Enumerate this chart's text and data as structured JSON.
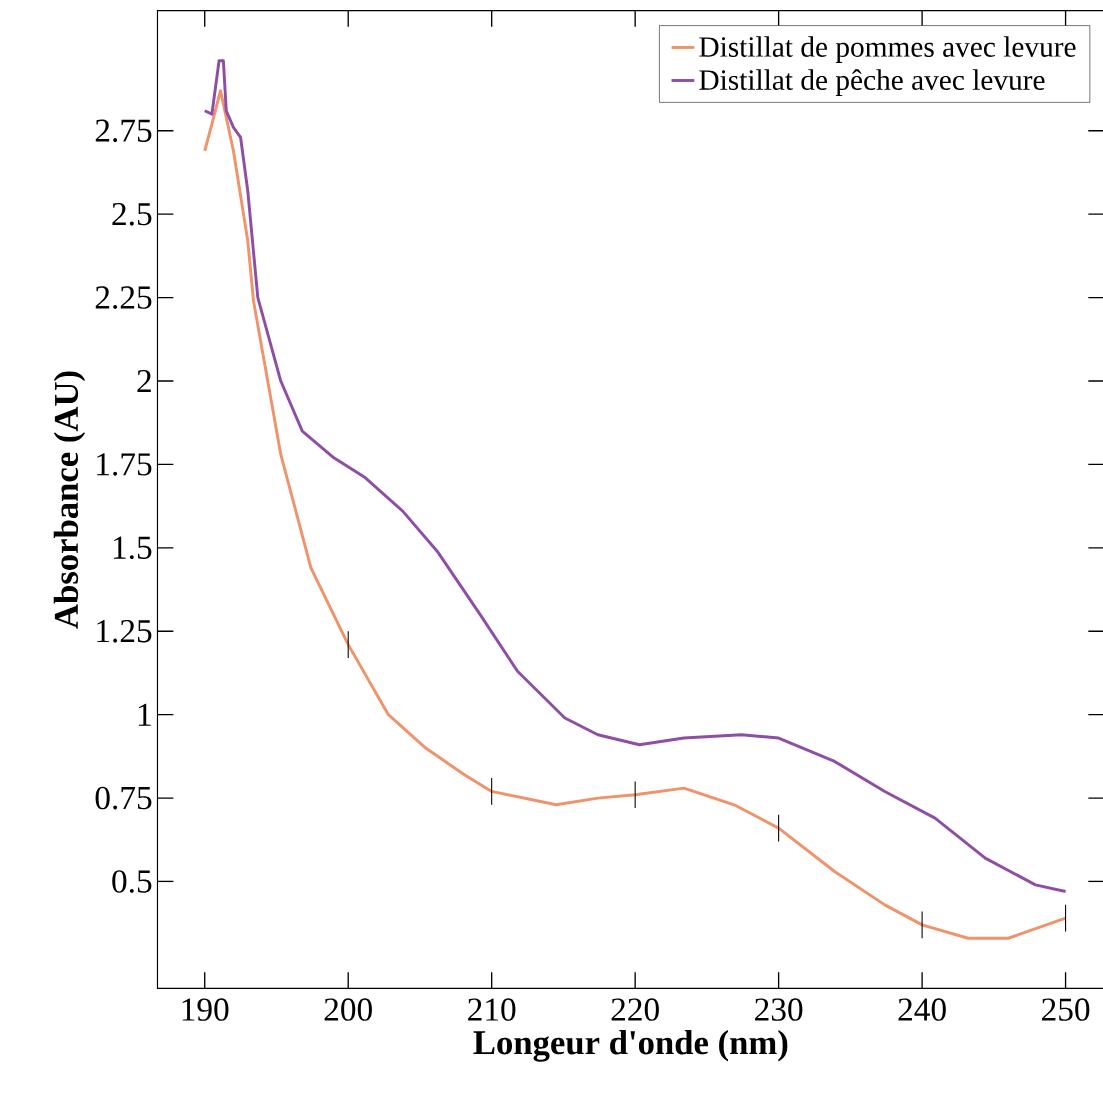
{
  "chart_data": {
    "type": "line",
    "xlabel": "Longeur d'onde (nm)",
    "ylabel": "Absorbance (AU)",
    "xlim": [
      186.7,
      252.7
    ],
    "ylim": [
      0.18,
      3.11
    ],
    "xticks": [
      190,
      200,
      210,
      220,
      230,
      240,
      250
    ],
    "yticks": [
      0.5,
      0.75,
      1,
      1.25,
      1.5,
      1.75,
      2,
      2.25,
      2.5,
      2.75
    ],
    "legend": "top right",
    "grid": false,
    "line_style": "solid",
    "series": [
      {
        "name": "Distillat de pommes avec levure",
        "color": "#f0926a",
        "x": [
          190,
          190.5,
          191.1,
          192,
          193,
          193.4,
          195.3,
          197.4,
          200,
          202.8,
          205.4,
          208.1,
          210,
          214.5,
          217.4,
          220,
          223.4,
          226.9,
          230,
          233.9,
          237.4,
          240,
          243.2,
          246,
          250
        ],
        "values": [
          2.69,
          2.77,
          2.87,
          2.69,
          2.42,
          2.24,
          1.78,
          1.44,
          1.21,
          1.0,
          0.9,
          0.82,
          0.77,
          0.73,
          0.75,
          0.76,
          0.78,
          0.73,
          0.66,
          0.53,
          0.43,
          0.37,
          0.33,
          0.33,
          0.39
        ],
        "errors": [
          null,
          null,
          null,
          null,
          null,
          null,
          null,
          null,
          0.04,
          null,
          null,
          null,
          0.04,
          null,
          null,
          0.04,
          null,
          null,
          0.04,
          null,
          null,
          0.04,
          null,
          null,
          0.04
        ]
      },
      {
        "name": "Distillat de pêche avec levure",
        "color": "#8e4ea6",
        "x": [
          190,
          190.5,
          191,
          191.3,
          191.5,
          192,
          192.5,
          193,
          193.7,
          195.3,
          196.8,
          199,
          201.2,
          203.8,
          206.2,
          209.2,
          211.8,
          215.1,
          217.4,
          220.3,
          223.4,
          227.4,
          230,
          233.9,
          237.4,
          240.9,
          244.4,
          247.9,
          250
        ],
        "values": [
          2.81,
          2.8,
          2.96,
          2.96,
          2.81,
          2.76,
          2.73,
          2.57,
          2.25,
          2.0,
          1.85,
          1.77,
          1.71,
          1.61,
          1.49,
          1.3,
          1.13,
          0.99,
          0.94,
          0.91,
          0.93,
          0.94,
          0.93,
          0.86,
          0.77,
          0.69,
          0.57,
          0.49,
          0.47
        ]
      }
    ]
  }
}
